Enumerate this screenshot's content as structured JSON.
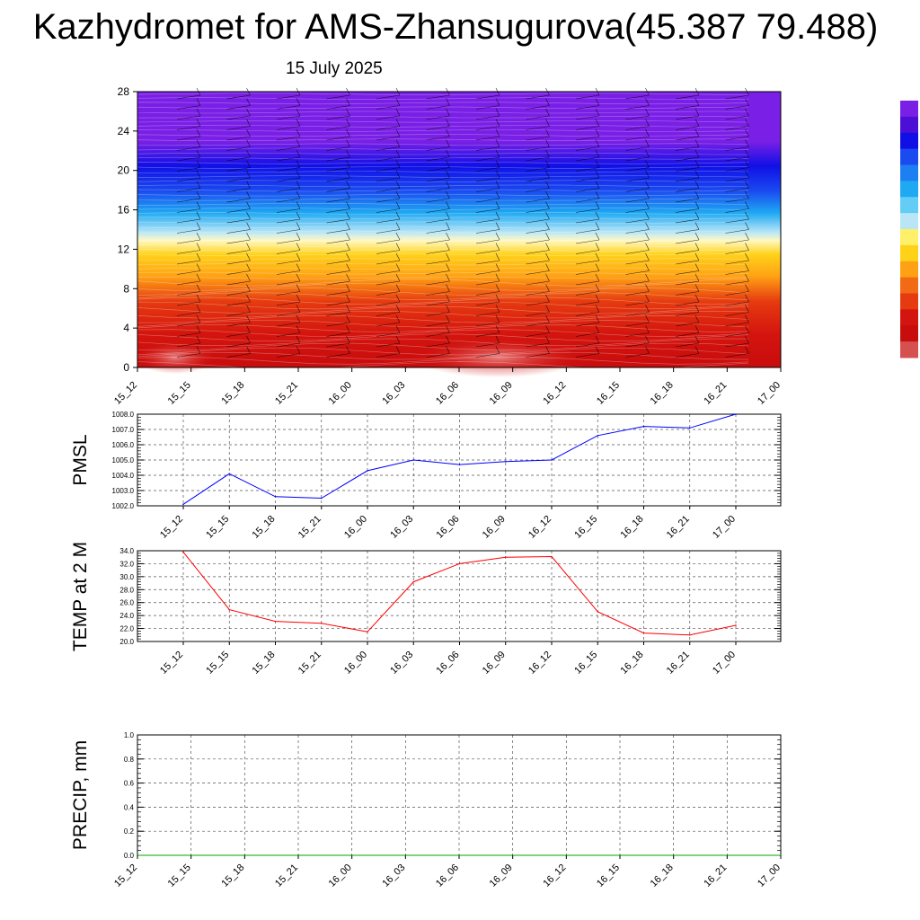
{
  "title": "Kazhydromet for AMS-Zhansugurova(45.387 79.488)",
  "date": "15 July 2025",
  "chart_data": [
    {
      "type": "heatmap",
      "title": "",
      "x_ticks": [
        "15_12",
        "15_15",
        "15_18",
        "15_21",
        "16_00",
        "16_03",
        "16_06",
        "16_09",
        "16_12",
        "16_15",
        "16_18",
        "16_21",
        "17_00"
      ],
      "y_ticks": [
        "0",
        "4",
        "8",
        "12",
        "16",
        "20",
        "24",
        "28"
      ],
      "ylim": [
        0,
        28
      ],
      "colorbar": [
        "#7a1fe6",
        "#4b0fd6",
        "#1010e6",
        "#1a4af0",
        "#1d7ff2",
        "#1fa9f2",
        "#63cdf5",
        "#b9e6f7",
        "#fff06a",
        "#ffd21a",
        "#ffa114",
        "#f26a14",
        "#e63b10",
        "#d4140e",
        "#c80d0d",
        "#d65050"
      ],
      "legend": "right"
    },
    {
      "type": "line",
      "ylabel": "PMSL",
      "categories": [
        "15_12",
        "15_15",
        "15_18",
        "15_21",
        "16_00",
        "16_03",
        "16_06",
        "16_09",
        "16_12",
        "16_15",
        "16_18",
        "16_21",
        "17_00"
      ],
      "values": [
        1002.1,
        1004.1,
        1002.6,
        1002.5,
        1004.3,
        1005.0,
        1004.7,
        1004.9,
        1005.0,
        1006.6,
        1007.2,
        1007.1,
        1008.0
      ],
      "y_ticks": [
        "1002.0",
        "1003.0",
        "1004.0",
        "1005.0",
        "1006.0",
        "1007.0",
        "1008.0"
      ],
      "ylim": [
        1002,
        1008
      ],
      "color": "#0000ff",
      "grid": true
    },
    {
      "type": "line",
      "ylabel": "TEMP at 2 M",
      "categories": [
        "15_12",
        "15_15",
        "15_18",
        "15_21",
        "16_00",
        "16_03",
        "16_06",
        "16_09",
        "16_12",
        "16_15",
        "16_18",
        "16_21",
        "17_00"
      ],
      "values": [
        33.8,
        24.9,
        23.1,
        22.8,
        21.5,
        29.2,
        32.0,
        33.0,
        33.1,
        24.6,
        21.3,
        21.0,
        22.5
      ],
      "y_ticks": [
        "20.0",
        "22.0",
        "24.0",
        "26.0",
        "28.0",
        "30.0",
        "32.0",
        "34.0"
      ],
      "ylim": [
        20,
        34
      ],
      "color": "#ff0000",
      "grid": true
    },
    {
      "type": "line",
      "ylabel": "PRECIP, mm",
      "categories": [
        "15_12",
        "15_15",
        "15_18",
        "15_21",
        "16_00",
        "16_03",
        "16_06",
        "16_09",
        "16_12",
        "16_15",
        "16_18",
        "16_21",
        "17_00"
      ],
      "values": [
        0,
        0,
        0,
        0,
        0,
        0,
        0,
        0,
        0,
        0,
        0,
        0,
        0
      ],
      "y_ticks": [
        "0.0",
        "0.2",
        "0.4",
        "0.6",
        "0.8",
        "1.0"
      ],
      "ylim": [
        0,
        1
      ],
      "color": "#00aa00",
      "grid": true
    }
  ]
}
